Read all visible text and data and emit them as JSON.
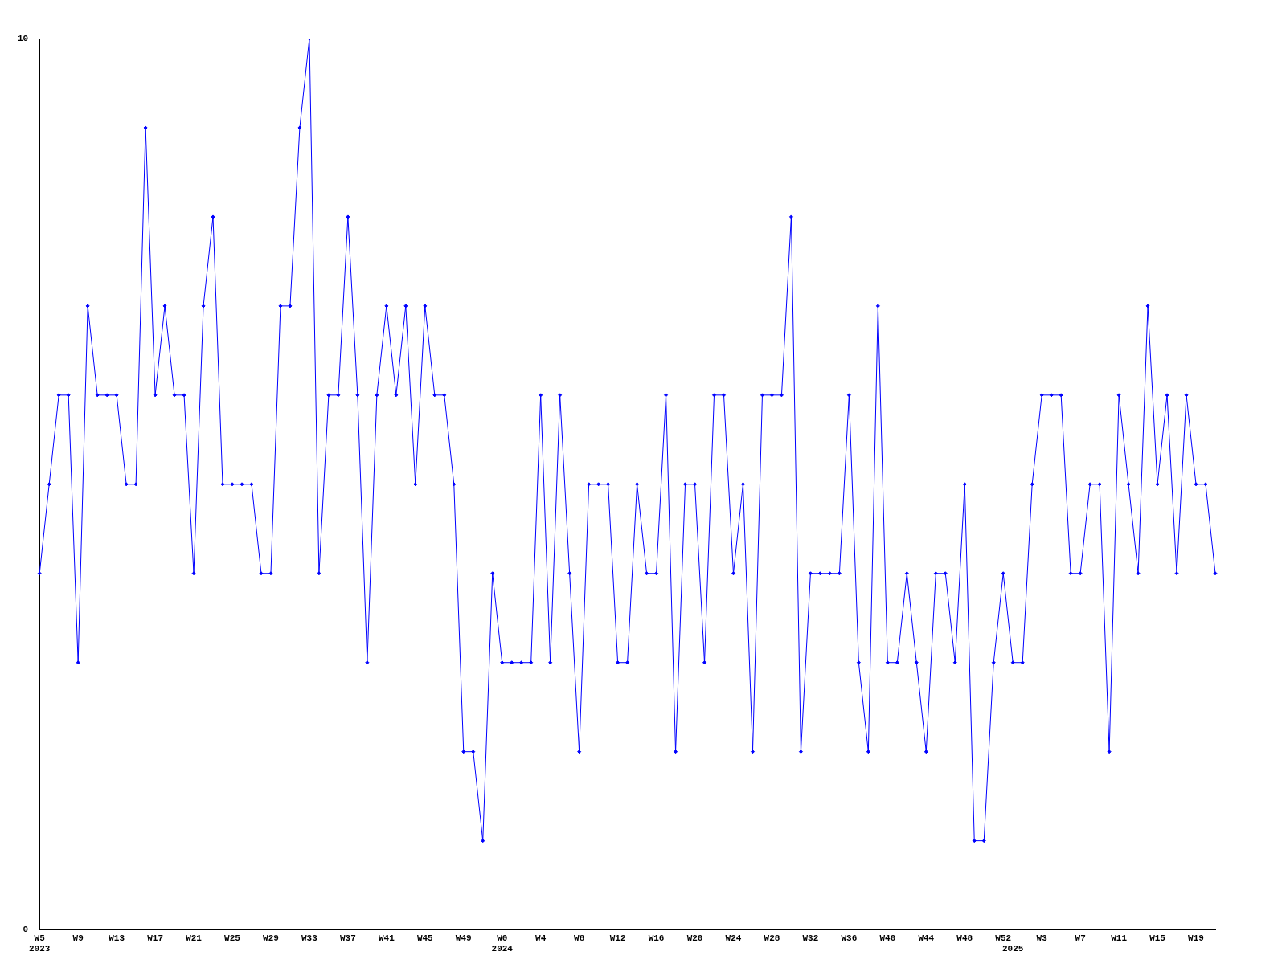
{
  "chart_data": {
    "type": "line",
    "categories": [
      "W5\n2023",
      null,
      null,
      null,
      "W9",
      null,
      null,
      null,
      "W13",
      null,
      null,
      null,
      "W17",
      null,
      null,
      null,
      "W21",
      null,
      null,
      null,
      "W25",
      null,
      null,
      null,
      "W29",
      null,
      null,
      null,
      "W33",
      null,
      null,
      null,
      "W37",
      null,
      null,
      null,
      "W41",
      null,
      null,
      null,
      "W45",
      null,
      null,
      null,
      "W49",
      null,
      null,
      null,
      "W0\n2024",
      null,
      null,
      null,
      "W4",
      null,
      null,
      null,
      "W8",
      null,
      null,
      null,
      "W12",
      null,
      null,
      null,
      "W16",
      null,
      null,
      null,
      "W20",
      null,
      null,
      null,
      "W24",
      null,
      null,
      null,
      "W28",
      null,
      null,
      null,
      "W32",
      null,
      null,
      null,
      "W36",
      null,
      null,
      null,
      "W40",
      null,
      null,
      null,
      "W44",
      null,
      null,
      null,
      "W48",
      null,
      null,
      null,
      "W52",
      "\n2025",
      null,
      null,
      "W3",
      null,
      null,
      null,
      "W7",
      null,
      null,
      null,
      "W11",
      null,
      null,
      null,
      "W15",
      null,
      null,
      null,
      "W19",
      null,
      null
    ],
    "series": [
      {
        "color": "#0000ff",
        "values": [
          4,
          5,
          6,
          6,
          3,
          7,
          6,
          6,
          6,
          5,
          5,
          9,
          6,
          7,
          6,
          6,
          4,
          7,
          8,
          5,
          5,
          5,
          5,
          4,
          4,
          7,
          7,
          9,
          10,
          4,
          6,
          6,
          8,
          6,
          3,
          6,
          7,
          6,
          7,
          5,
          7,
          6,
          6,
          5,
          2,
          2,
          1,
          4,
          3,
          3,
          3,
          3,
          6,
          3,
          6,
          4,
          2,
          5,
          5,
          5,
          3,
          3,
          5,
          4,
          4,
          6,
          2,
          5,
          5,
          3,
          6,
          6,
          4,
          5,
          2,
          6,
          6,
          6,
          8,
          2,
          4,
          4,
          4,
          4,
          6,
          3,
          2,
          7,
          3,
          3,
          4,
          3,
          2,
          4,
          4,
          3,
          5,
          1,
          1,
          3,
          4,
          3,
          3,
          5,
          6,
          6,
          6,
          4,
          4,
          5,
          5,
          2,
          6,
          5,
          4,
          7,
          5,
          6,
          4,
          6,
          5,
          5,
          4
        ]
      }
    ],
    "ylim": [
      0,
      10
    ],
    "yticks": [
      0,
      10
    ],
    "grid": false,
    "legend": false,
    "marker": "diamond",
    "line_style": "solid"
  }
}
